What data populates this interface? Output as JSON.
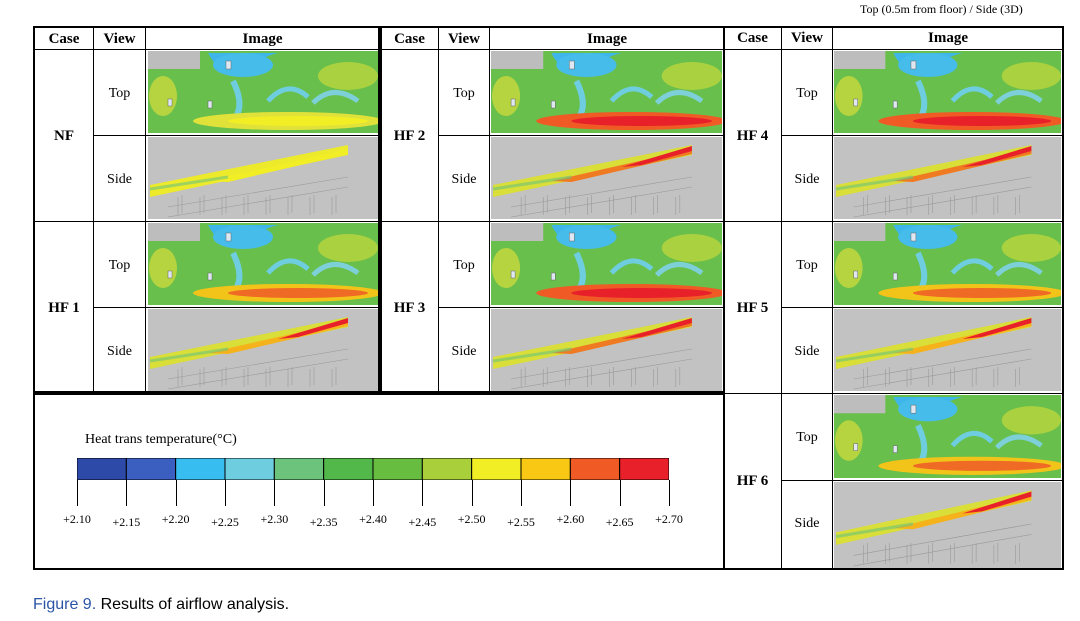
{
  "top_note": "Top (0.5m from floor) / Side (3D)",
  "headers": {
    "case": "Case",
    "view": "View",
    "image": "Image"
  },
  "views": {
    "top": "Top",
    "side": "Side"
  },
  "cases": [
    "NF",
    "HF 1",
    "HF 2",
    "HF 3",
    "HF 4",
    "HF 5",
    "HF 6"
  ],
  "legend": {
    "title": "Heat trans temperature(°C)",
    "colors": [
      "#2e4aa8",
      "#3b5fc0",
      "#38bdf0",
      "#6fcde0",
      "#6cc47c",
      "#52b84a",
      "#66bd40",
      "#a9cf3a",
      "#f2ee25",
      "#f9c814",
      "#f05a25",
      "#e8202a"
    ],
    "ticks": [
      "+2.10",
      "+2.15",
      "+2.20",
      "+2.25",
      "+2.30",
      "+2.35",
      "+2.40",
      "+2.45",
      "+2.50",
      "+2.55",
      "+2.60",
      "+2.65",
      "+2.70"
    ]
  },
  "caption": {
    "figure": "Figure 9.",
    "text": " Results of airflow analysis."
  }
}
